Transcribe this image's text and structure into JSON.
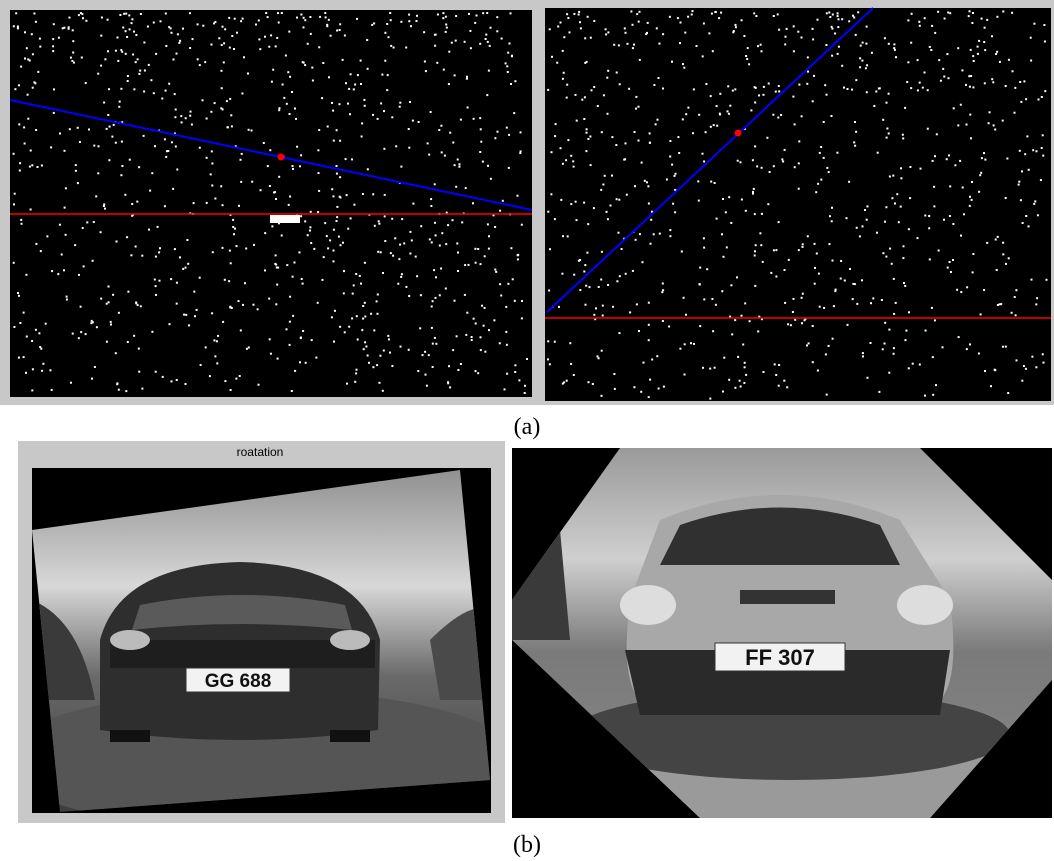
{
  "figure": {
    "panel_a": {
      "caption": "(a)"
    },
    "panel_b": {
      "caption": "(b)",
      "left_title": "roatation",
      "left_plate": "GG 688",
      "right_plate": "FF 307"
    }
  }
}
